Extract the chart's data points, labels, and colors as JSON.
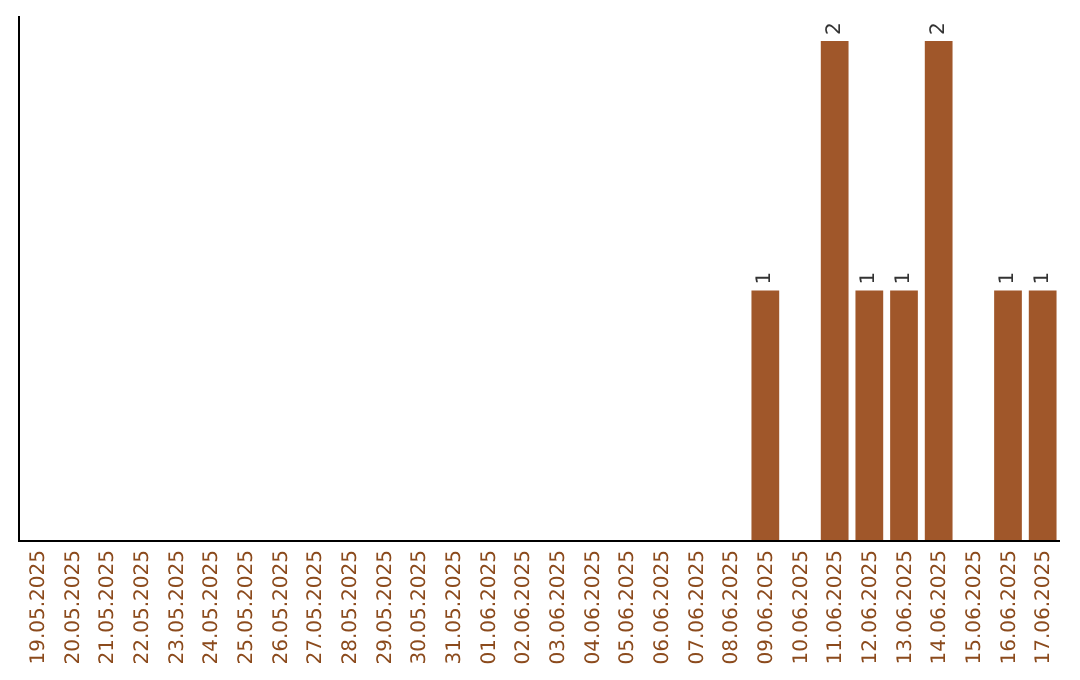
{
  "chart_data": {
    "type": "bar",
    "categories": [
      "19.05.2025",
      "20.05.2025",
      "21.05.2025",
      "22.05.2025",
      "23.05.2025",
      "24.05.2025",
      "25.05.2025",
      "26.05.2025",
      "27.05.2025",
      "28.05.2025",
      "29.05.2025",
      "30.05.2025",
      "31.05.2025",
      "01.06.2025",
      "02.06.2025",
      "03.06.2025",
      "04.06.2025",
      "05.06.2025",
      "06.06.2025",
      "07.06.2025",
      "08.06.2025",
      "09.06.2025",
      "10.06.2025",
      "11.06.2025",
      "12.06.2025",
      "13.06.2025",
      "14.06.2025",
      "15.06.2025",
      "16.06.2025",
      "17.06.2025"
    ],
    "values": [
      null,
      null,
      null,
      null,
      null,
      null,
      null,
      null,
      null,
      null,
      null,
      null,
      null,
      null,
      null,
      null,
      null,
      null,
      null,
      null,
      null,
      1,
      null,
      2,
      1,
      1,
      2,
      null,
      1,
      1
    ],
    "value_labels": [
      null,
      null,
      null,
      null,
      null,
      null,
      null,
      null,
      null,
      null,
      null,
      null,
      null,
      null,
      null,
      null,
      null,
      null,
      null,
      null,
      null,
      "1",
      null,
      "2",
      "1",
      "1",
      "2",
      null,
      "1",
      "1"
    ],
    "color": "#a0572a",
    "ylim": [
      0,
      2.1
    ],
    "tick_labels": "x"
  }
}
